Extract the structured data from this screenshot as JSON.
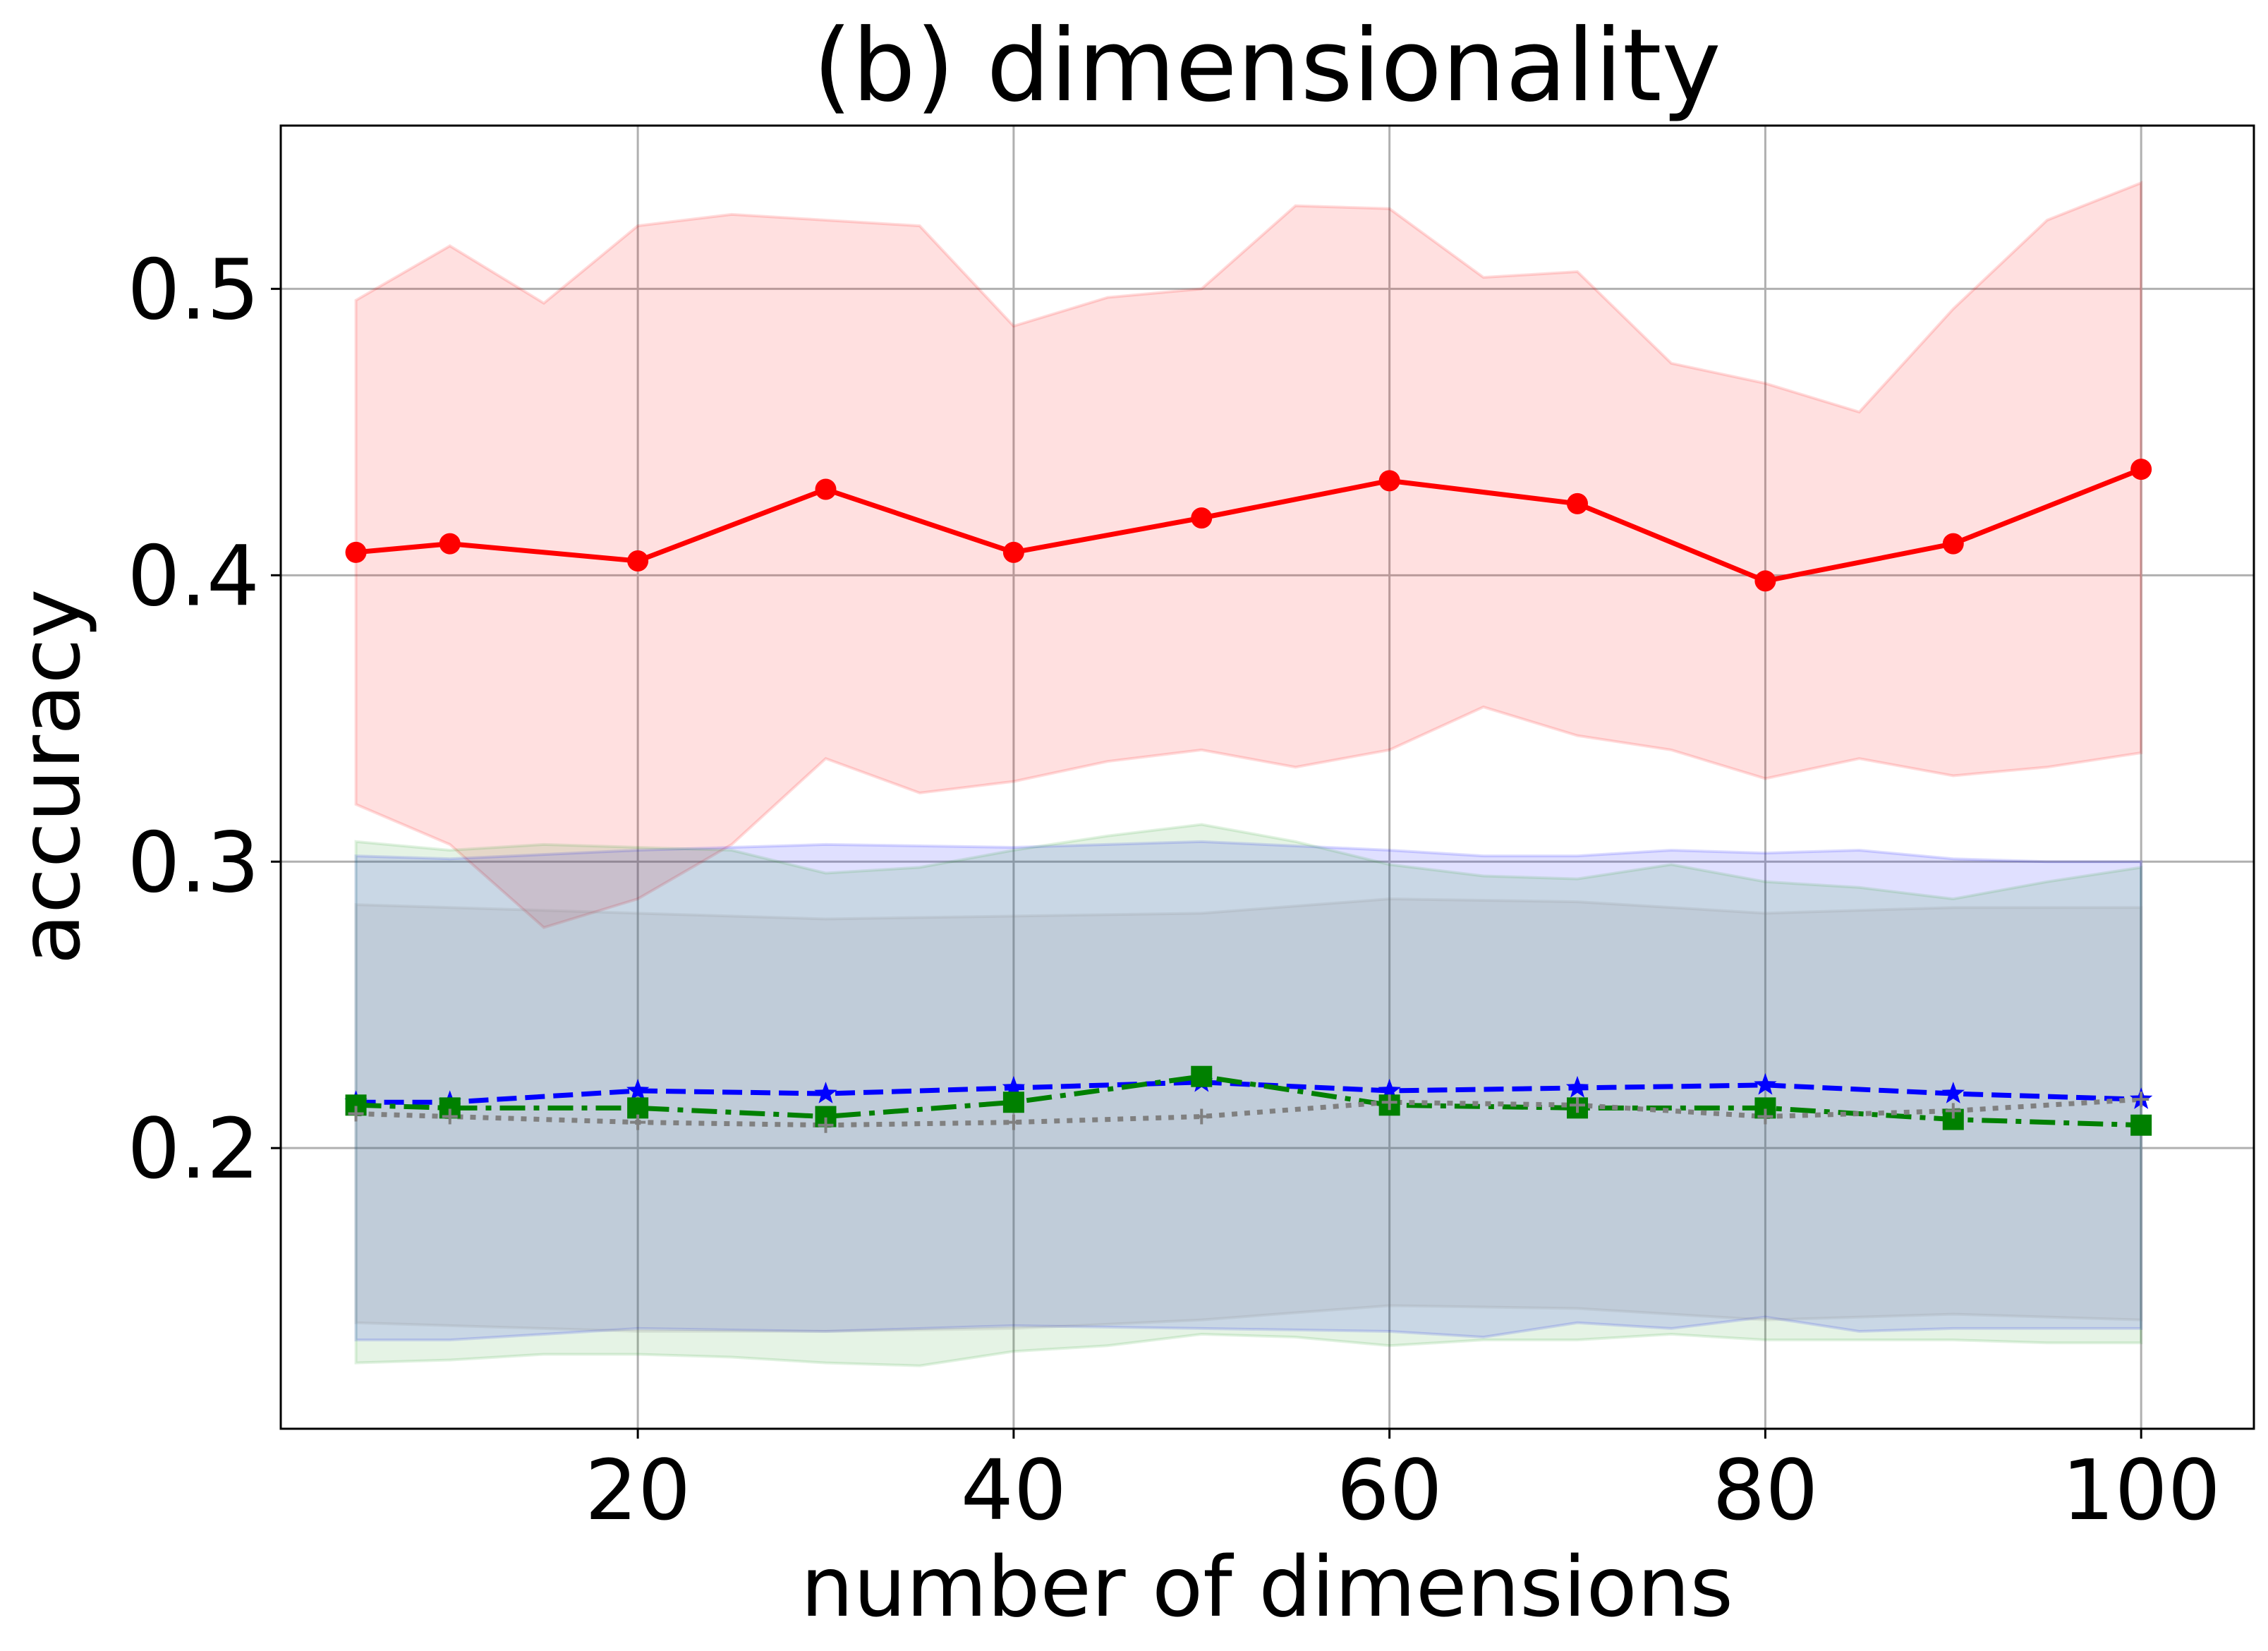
{
  "chart_data": {
    "type": "line",
    "title": "(b) dimensionality",
    "xlabel": "number of dimensions",
    "ylabel": "accuracy",
    "xlim": [
      1,
      106
    ],
    "ylim": [
      0.102,
      0.557
    ],
    "xticks": [
      20,
      40,
      60,
      80,
      100
    ],
    "xtick_labels": [
      "20",
      "40",
      "60",
      "80",
      "100"
    ],
    "yticks": [
      0.2,
      0.3,
      0.4,
      0.5
    ],
    "ytick_labels": [
      "0.2",
      "0.3",
      "0.4",
      "0.5"
    ],
    "grid": true,
    "legend": "none",
    "series": [
      {
        "color": "#ff0000",
        "linestyle": "solid",
        "marker": "circle",
        "x": [
          5,
          10,
          20,
          30,
          40,
          50,
          60,
          70,
          80,
          90,
          100
        ],
        "values": [
          0.408,
          0.411,
          0.405,
          0.43,
          0.408,
          0.42,
          0.433,
          0.425,
          0.398,
          0.411,
          0.437
        ],
        "band_color": "#ff0000",
        "band_x": [
          5,
          10,
          15,
          20,
          25,
          30,
          35,
          40,
          45,
          50,
          55,
          60,
          65,
          70,
          75,
          80,
          85,
          90,
          95,
          100
        ],
        "band_upper": [
          0.496,
          0.515,
          0.495,
          0.522,
          0.526,
          0.524,
          0.522,
          0.487,
          0.497,
          0.5,
          0.529,
          0.528,
          0.504,
          0.506,
          0.474,
          0.467,
          0.457,
          0.493,
          0.524,
          0.537
        ],
        "band_lower": [
          0.32,
          0.306,
          0.277,
          0.287,
          0.306,
          0.336,
          0.324,
          0.328,
          0.335,
          0.339,
          0.333,
          0.339,
          0.354,
          0.344,
          0.339,
          0.329,
          0.336,
          0.33,
          0.333,
          0.338
        ]
      },
      {
        "color": "#0000ff",
        "linestyle": "dashed",
        "marker": "star",
        "x": [
          5,
          10,
          20,
          30,
          40,
          50,
          60,
          70,
          80,
          90,
          100
        ],
        "values": [
          0.216,
          0.216,
          0.22,
          0.219,
          0.221,
          0.223,
          0.22,
          0.221,
          0.222,
          0.219,
          0.217
        ],
        "band_color": "#0000ff",
        "band_x": [
          5,
          10,
          20,
          30,
          40,
          50,
          60,
          65,
          70,
          75,
          80,
          85,
          90,
          95,
          100
        ],
        "band_upper": [
          0.302,
          0.301,
          0.304,
          0.306,
          0.305,
          0.307,
          0.304,
          0.302,
          0.302,
          0.304,
          0.303,
          0.304,
          0.301,
          0.3,
          0.3
        ],
        "band_lower": [
          0.133,
          0.133,
          0.137,
          0.136,
          0.138,
          0.137,
          0.136,
          0.134,
          0.139,
          0.137,
          0.141,
          0.136,
          0.137,
          0.137,
          0.137
        ]
      },
      {
        "color": "#008000",
        "linestyle": "dashdot",
        "marker": "square",
        "x": [
          5,
          10,
          20,
          30,
          40,
          50,
          60,
          70,
          80,
          90,
          100
        ],
        "values": [
          0.215,
          0.214,
          0.214,
          0.211,
          0.216,
          0.225,
          0.215,
          0.214,
          0.214,
          0.21,
          0.208
        ],
        "band_color": "#2ca02c",
        "band_x": [
          5,
          10,
          15,
          20,
          25,
          30,
          35,
          40,
          45,
          50,
          55,
          60,
          65,
          70,
          75,
          80,
          85,
          90,
          95,
          100
        ],
        "band_upper": [
          0.307,
          0.304,
          0.306,
          0.305,
          0.304,
          0.296,
          0.298,
          0.304,
          0.309,
          0.313,
          0.307,
          0.299,
          0.295,
          0.294,
          0.299,
          0.293,
          0.291,
          0.287,
          0.293,
          0.298
        ],
        "band_lower": [
          0.125,
          0.126,
          0.128,
          0.128,
          0.127,
          0.125,
          0.124,
          0.129,
          0.131,
          0.135,
          0.134,
          0.131,
          0.133,
          0.133,
          0.135,
          0.133,
          0.133,
          0.133,
          0.132,
          0.132
        ]
      },
      {
        "color": "#808080",
        "linestyle": "dotted",
        "marker": "plus",
        "x": [
          5,
          10,
          20,
          30,
          40,
          50,
          60,
          70,
          80,
          90,
          100
        ],
        "values": [
          0.212,
          0.211,
          0.209,
          0.208,
          0.209,
          0.211,
          0.216,
          0.215,
          0.211,
          0.213,
          0.217
        ],
        "band_color": "#808080",
        "band_x": [
          5,
          10,
          20,
          30,
          40,
          50,
          60,
          70,
          80,
          90,
          100
        ],
        "band_upper": [
          0.285,
          0.284,
          0.282,
          0.28,
          0.281,
          0.282,
          0.287,
          0.286,
          0.282,
          0.284,
          0.284
        ],
        "band_lower": [
          0.139,
          0.138,
          0.136,
          0.136,
          0.137,
          0.14,
          0.145,
          0.144,
          0.14,
          0.142,
          0.14
        ]
      }
    ]
  }
}
